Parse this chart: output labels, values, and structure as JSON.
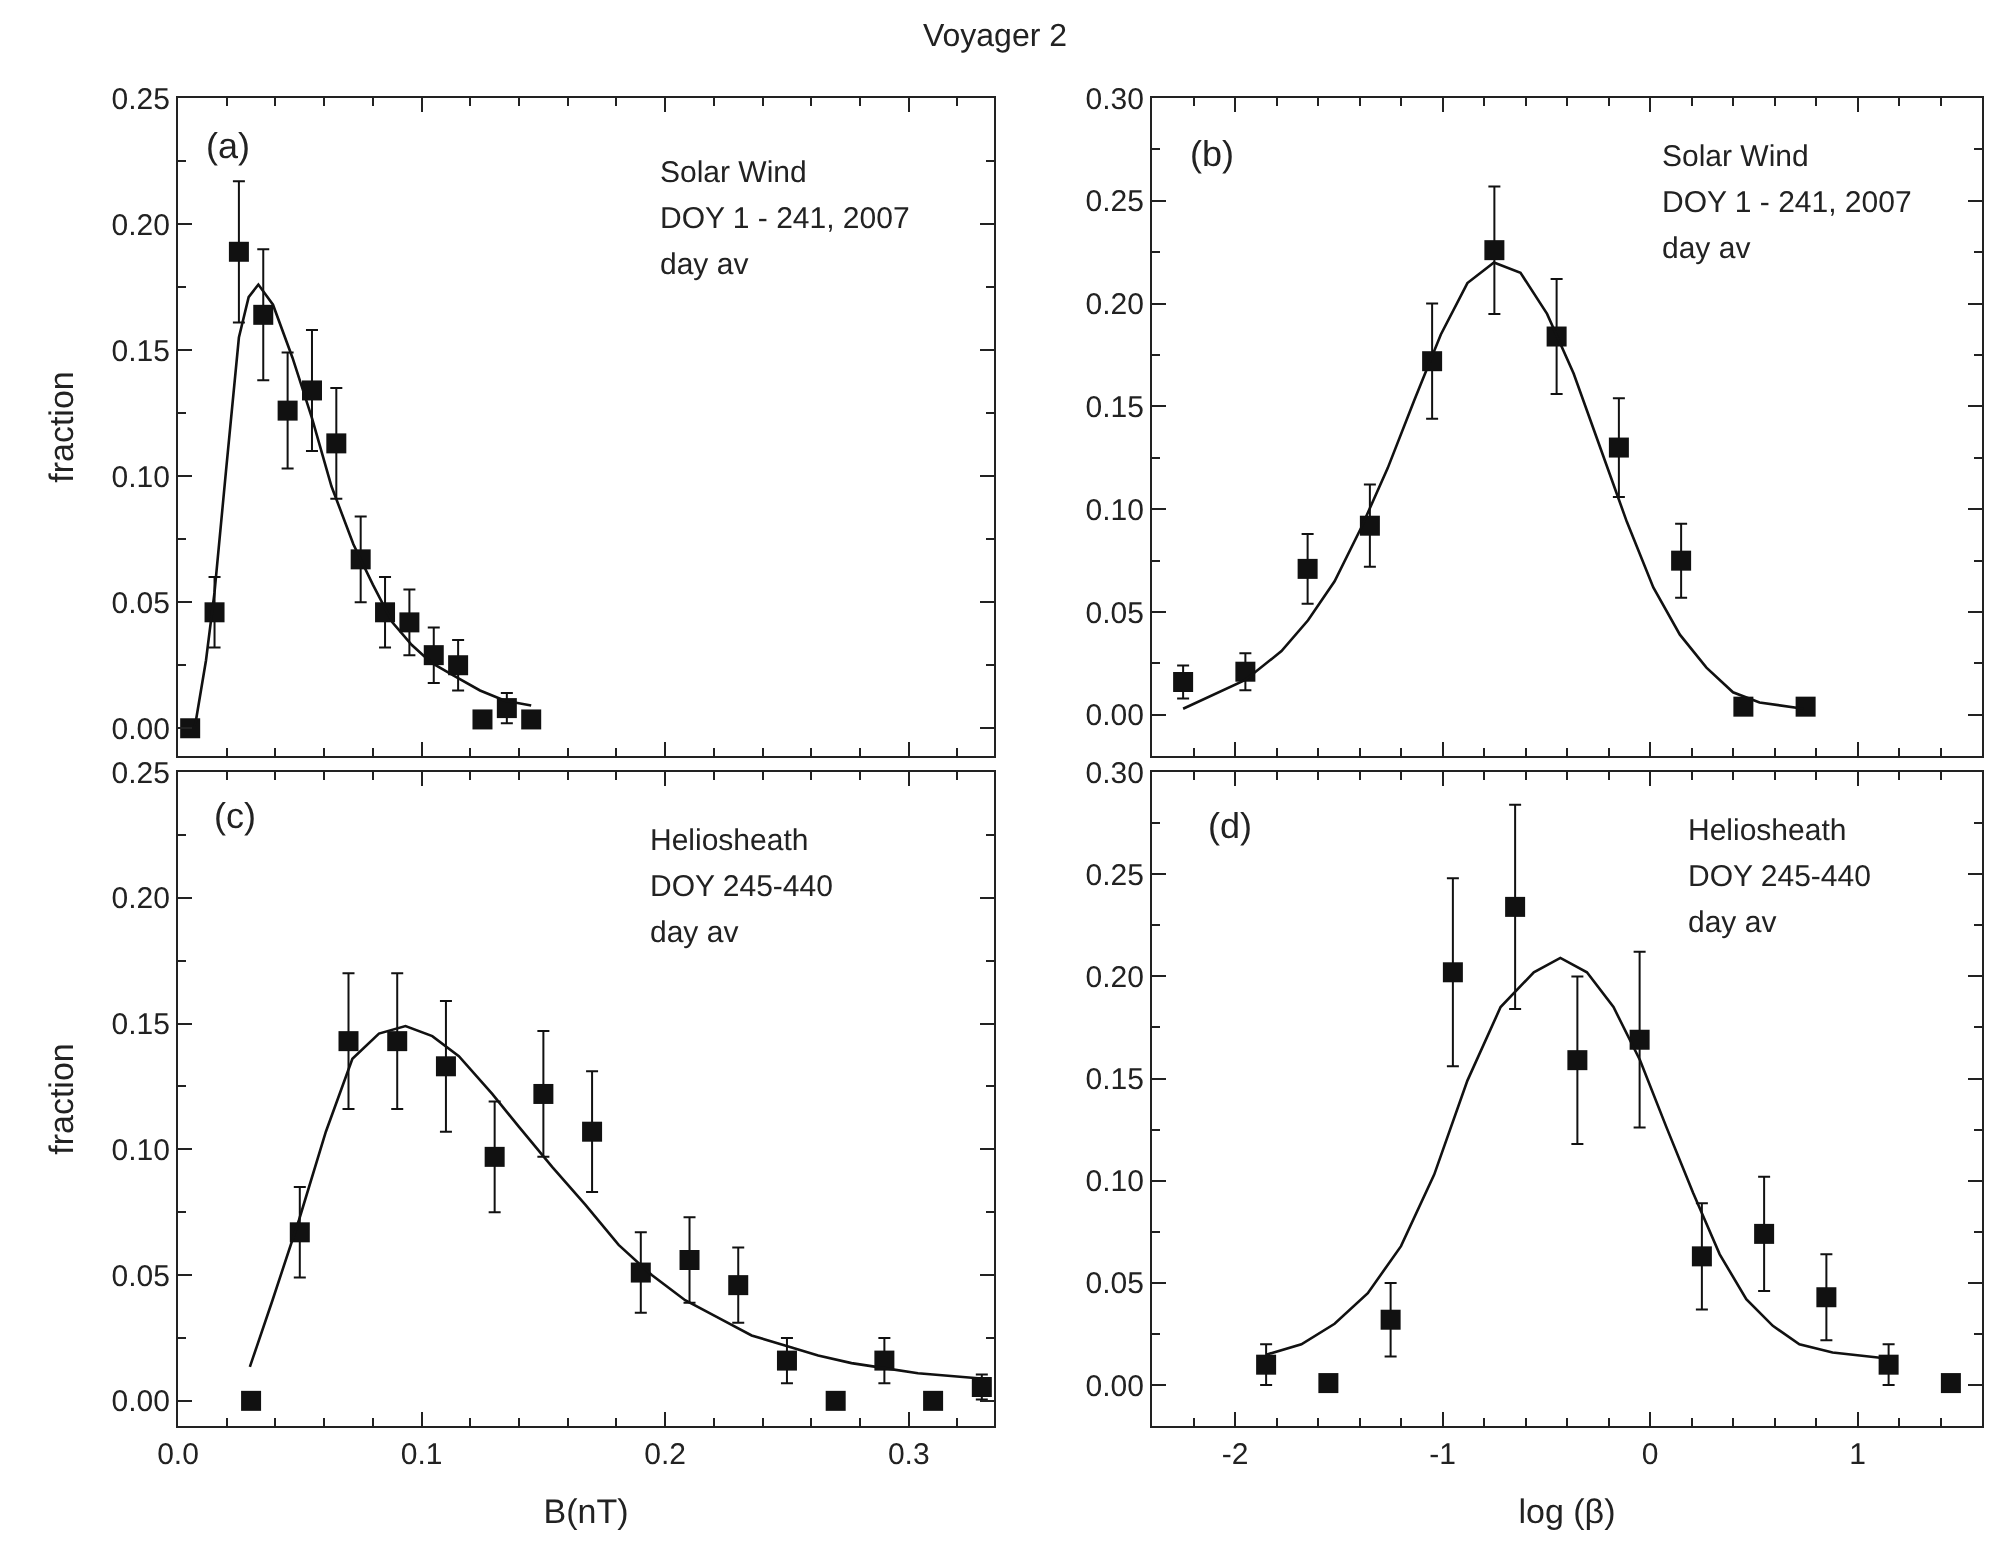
{
  "chart_data": [
    {
      "type": "scatter",
      "title": "Voyager 2",
      "ylabel": "fraction",
      "annotations": [
        "(a)",
        "Solar Wind",
        "DOY 1 - 241, 2007",
        "day av"
      ],
      "xlim": [
        0,
        0.335
      ],
      "ylim": [
        -0.011,
        0.25
      ],
      "tick_labels": "y",
      "xticks": [
        0,
        {
          "value": 0.02,
          "label": null
        },
        {
          "value": 0.04,
          "label": null
        },
        {
          "value": 0.06,
          "label": null
        },
        {
          "value": 0.08,
          "label": null
        },
        0.1,
        {
          "value": 0.12,
          "label": null
        },
        {
          "value": 0.14,
          "label": null
        },
        {
          "value": 0.16,
          "label": null
        },
        {
          "value": 0.18,
          "label": null
        },
        0.2,
        {
          "value": 0.22,
          "label": null
        },
        {
          "value": 0.24,
          "label": null
        },
        {
          "value": 0.26,
          "label": null
        },
        {
          "value": 0.28,
          "label": null
        },
        0.3,
        {
          "value": 0.32,
          "label": null
        }
      ],
      "yticks": [
        {
          "value": 0,
          "label": "0.00"
        },
        {
          "value": 0.025,
          "label": null
        },
        0.05,
        {
          "value": 0.075,
          "label": null
        },
        {
          "value": 0.1,
          "label": "0.10"
        },
        {
          "value": 0.125,
          "label": null
        },
        0.15,
        {
          "value": 0.175,
          "label": null
        },
        {
          "value": 0.2,
          "label": "0.20"
        },
        {
          "value": 0.225,
          "label": null
        },
        0.25
      ],
      "series": [
        {
          "marker": "square",
          "color": "#111111",
          "x": [
            0.005,
            0.015,
            0.025,
            0.035,
            0.045,
            0.055,
            0.065,
            0.075,
            0.085,
            0.095,
            0.105,
            0.115,
            0.125,
            0.135,
            0.145
          ],
          "values": [
            0.0,
            0.046,
            0.189,
            0.164,
            0.126,
            0.134,
            0.113,
            0.067,
            0.046,
            0.042,
            0.029,
            0.025,
            0.0035,
            0.008,
            0.0035
          ],
          "errors": [
            null,
            0.014,
            0.028,
            0.026,
            0.023,
            0.024,
            0.022,
            0.017,
            0.014,
            0.013,
            0.011,
            0.01,
            null,
            0.006,
            null
          ]
        },
        {
          "type": "line",
          "marker": "none",
          "color": "#111111",
          "x": [
            0.007,
            0.0115,
            0.015,
            0.0197,
            0.025,
            0.029,
            0.033,
            0.039,
            0.047,
            0.055,
            0.063,
            0.072,
            0.08,
            0.088,
            0.096,
            0.104,
            0.113,
            0.124,
            0.134,
            0.145
          ],
          "values": [
            0.001,
            0.027,
            0.054,
            0.102,
            0.155,
            0.171,
            0.176,
            0.168,
            0.147,
            0.123,
            0.096,
            0.073,
            0.057,
            0.042,
            0.033,
            0.026,
            0.021,
            0.015,
            0.011,
            0.009
          ]
        }
      ]
    },
    {
      "type": "scatter",
      "annotations": [
        "(b)",
        "Solar Wind",
        "DOY 1 - 241, 2007",
        "day av"
      ],
      "xlim": [
        -2.4,
        1.6
      ],
      "ylim": [
        -0.02,
        0.3
      ],
      "tick_labels": "y",
      "xticks": [
        {
          "value": -2.2,
          "label": null
        },
        -2,
        {
          "value": -1.8,
          "label": null
        },
        {
          "value": -1.6,
          "label": null
        },
        {
          "value": -1.4,
          "label": null
        },
        {
          "value": -1.2,
          "label": null
        },
        -1,
        {
          "value": -0.8,
          "label": null
        },
        {
          "value": -0.6,
          "label": null
        },
        {
          "value": -0.4,
          "label": null
        },
        {
          "value": -0.2,
          "label": null
        },
        0,
        {
          "value": 0.2,
          "label": null
        },
        {
          "value": 0.4,
          "label": null
        },
        {
          "value": 0.6,
          "label": null
        },
        {
          "value": 0.8,
          "label": null
        },
        1,
        {
          "value": 1.2,
          "label": null
        },
        {
          "value": 1.4,
          "label": null
        }
      ],
      "yticks": [
        {
          "value": 0,
          "label": "0.00"
        },
        {
          "value": 0.025,
          "label": null
        },
        0.05,
        {
          "value": 0.075,
          "label": null
        },
        {
          "value": 0.1,
          "label": "0.10"
        },
        {
          "value": 0.125,
          "label": null
        },
        0.15,
        {
          "value": 0.175,
          "label": null
        },
        {
          "value": 0.2,
          "label": "0.20"
        },
        {
          "value": 0.225,
          "label": null
        },
        0.25,
        {
          "value": 0.275,
          "label": null
        },
        {
          "value": 0.3,
          "label": "0.30"
        }
      ],
      "series": [
        {
          "marker": "square",
          "color": "#111111",
          "x": [
            -2.25,
            -1.95,
            -1.65,
            -1.35,
            -1.05,
            -0.75,
            -0.45,
            -0.15,
            0.15,
            0.45,
            0.75
          ],
          "values": [
            0.016,
            0.021,
            0.071,
            0.092,
            0.172,
            0.226,
            0.184,
            0.13,
            0.075,
            0.004,
            0.004
          ],
          "errors": [
            0.008,
            0.009,
            0.017,
            0.02,
            0.028,
            0.031,
            0.028,
            0.024,
            0.018,
            null,
            null
          ]
        },
        {
          "type": "line",
          "marker": "none",
          "color": "#111111",
          "x": [
            -2.25,
            -1.95,
            -1.776,
            -1.648,
            -1.52,
            -1.392,
            -1.264,
            -1.136,
            -1.008,
            -0.88,
            -0.752,
            -0.624,
            -0.496,
            -0.368,
            -0.24,
            -0.112,
            0.016,
            0.144,
            0.272,
            0.4,
            0.528,
            0.739
          ],
          "values": [
            0.003,
            0.017,
            0.031,
            0.046,
            0.065,
            0.091,
            0.12,
            0.153,
            0.185,
            0.21,
            0.22,
            0.215,
            0.195,
            0.166,
            0.13,
            0.094,
            0.062,
            0.039,
            0.023,
            0.011,
            0.006,
            0.003
          ]
        }
      ]
    },
    {
      "type": "scatter",
      "xlabel": "B(nT)",
      "ylabel": "fraction",
      "annotations": [
        "(c)",
        "Heliosheath",
        "DOY 245-440",
        "day av"
      ],
      "xlim": [
        0,
        0.335
      ],
      "ylim": [
        -0.01,
        0.25
      ],
      "xticks": [
        {
          "value": 0,
          "label": "0.0"
        },
        {
          "value": 0.02,
          "label": null
        },
        {
          "value": 0.04,
          "label": null
        },
        {
          "value": 0.06,
          "label": null
        },
        {
          "value": 0.08,
          "label": null
        },
        0.1,
        {
          "value": 0.12,
          "label": null
        },
        {
          "value": 0.14,
          "label": null
        },
        {
          "value": 0.16,
          "label": null
        },
        {
          "value": 0.18,
          "label": null
        },
        0.2,
        {
          "value": 0.22,
          "label": null
        },
        {
          "value": 0.24,
          "label": null
        },
        {
          "value": 0.26,
          "label": null
        },
        {
          "value": 0.28,
          "label": null
        },
        0.3,
        {
          "value": 0.32,
          "label": null
        }
      ],
      "yticks": [
        {
          "value": 0,
          "label": "0.00"
        },
        {
          "value": 0.025,
          "label": null
        },
        0.05,
        {
          "value": 0.075,
          "label": null
        },
        {
          "value": 0.1,
          "label": "0.10"
        },
        {
          "value": 0.125,
          "label": null
        },
        0.15,
        {
          "value": 0.175,
          "label": null
        },
        {
          "value": 0.2,
          "label": "0.20"
        },
        {
          "value": 0.225,
          "label": null
        },
        0.25
      ],
      "series": [
        {
          "marker": "square",
          "color": "#111111",
          "x": [
            0.03,
            0.05,
            0.07,
            0.09,
            0.11,
            0.13,
            0.15,
            0.17,
            0.19,
            0.21,
            0.23,
            0.25,
            0.27,
            0.29,
            0.31,
            0.33
          ],
          "values": [
            0.0,
            0.067,
            0.143,
            0.143,
            0.133,
            0.097,
            0.122,
            0.107,
            0.051,
            0.056,
            0.046,
            0.016,
            0.0,
            0.016,
            0.0,
            0.0055
          ],
          "errors": [
            null,
            0.018,
            0.027,
            0.027,
            0.026,
            0.022,
            0.025,
            0.024,
            0.016,
            0.017,
            0.015,
            0.009,
            null,
            0.009,
            null,
            0.005
          ]
        },
        {
          "type": "line",
          "marker": "none",
          "color": "#111111",
          "x": [
            0.0295,
            0.0388,
            0.0497,
            0.0607,
            0.0716,
            0.0825,
            0.0934,
            0.1044,
            0.1153,
            0.129,
            0.1399,
            0.1536,
            0.1672,
            0.1809,
            0.1945,
            0.2082,
            0.2219,
            0.2355,
            0.2492,
            0.2628,
            0.2765,
            0.29,
            0.3038,
            0.3284
          ],
          "values": [
            0.0135,
            0.04,
            0.072,
            0.107,
            0.136,
            0.146,
            0.149,
            0.145,
            0.137,
            0.122,
            0.109,
            0.093,
            0.078,
            0.062,
            0.05,
            0.04,
            0.033,
            0.026,
            0.022,
            0.018,
            0.015,
            0.013,
            0.011,
            0.009
          ]
        }
      ]
    },
    {
      "type": "scatter",
      "xlabel": "log (β)",
      "annotations": [
        "(d)",
        "Heliosheath",
        "DOY 245-440",
        "day av"
      ],
      "xlim": [
        -2.4,
        1.6
      ],
      "ylim": [
        -0.02,
        0.3
      ],
      "xticks": [
        {
          "value": -2.2,
          "label": null
        },
        -2,
        {
          "value": -1.8,
          "label": null
        },
        {
          "value": -1.6,
          "label": null
        },
        {
          "value": -1.4,
          "label": null
        },
        {
          "value": -1.2,
          "label": null
        },
        -1,
        {
          "value": -0.8,
          "label": null
        },
        {
          "value": -0.6,
          "label": null
        },
        {
          "value": -0.4,
          "label": null
        },
        {
          "value": -0.2,
          "label": null
        },
        0,
        {
          "value": 0.2,
          "label": null
        },
        {
          "value": 0.4,
          "label": null
        },
        {
          "value": 0.6,
          "label": null
        },
        {
          "value": 0.8,
          "label": null
        },
        1,
        {
          "value": 1.2,
          "label": null
        },
        {
          "value": 1.4,
          "label": null
        }
      ],
      "yticks": [
        {
          "value": 0,
          "label": "0.00"
        },
        {
          "value": 0.025,
          "label": null
        },
        0.05,
        {
          "value": 0.075,
          "label": null
        },
        {
          "value": 0.1,
          "label": "0.10"
        },
        {
          "value": 0.125,
          "label": null
        },
        0.15,
        {
          "value": 0.175,
          "label": null
        },
        {
          "value": 0.2,
          "label": "0.20"
        },
        {
          "value": 0.225,
          "label": null
        },
        0.25,
        {
          "value": 0.275,
          "label": null
        },
        {
          "value": 0.3,
          "label": "0.30"
        }
      ],
      "series": [
        {
          "marker": "square",
          "color": "#111111",
          "x": [
            -1.85,
            -1.55,
            -1.25,
            -0.95,
            -0.65,
            -0.35,
            -0.05,
            0.25,
            0.55,
            0.85,
            1.15,
            1.45
          ],
          "values": [
            0.01,
            0.001,
            0.032,
            0.202,
            0.234,
            0.159,
            0.169,
            0.063,
            0.074,
            0.043,
            0.01,
            0.001
          ],
          "errors": [
            0.01,
            null,
            0.018,
            0.046,
            0.05,
            0.041,
            0.043,
            0.026,
            0.028,
            0.021,
            0.01,
            null
          ]
        },
        {
          "type": "line",
          "marker": "none",
          "color": "#111111",
          "x": [
            -1.846,
            -1.68,
            -1.52,
            -1.36,
            -1.2,
            -1.04,
            -0.88,
            -0.72,
            -0.56,
            -0.432,
            -0.304,
            -0.176,
            -0.048,
            0.08,
            0.208,
            0.336,
            0.464,
            0.592,
            0.72,
            0.88,
            1.142
          ],
          "values": [
            0.015,
            0.02,
            0.03,
            0.045,
            0.068,
            0.103,
            0.149,
            0.185,
            0.202,
            0.209,
            0.202,
            0.185,
            0.159,
            0.126,
            0.094,
            0.064,
            0.042,
            0.029,
            0.02,
            0.016,
            0.013
          ]
        }
      ]
    }
  ]
}
